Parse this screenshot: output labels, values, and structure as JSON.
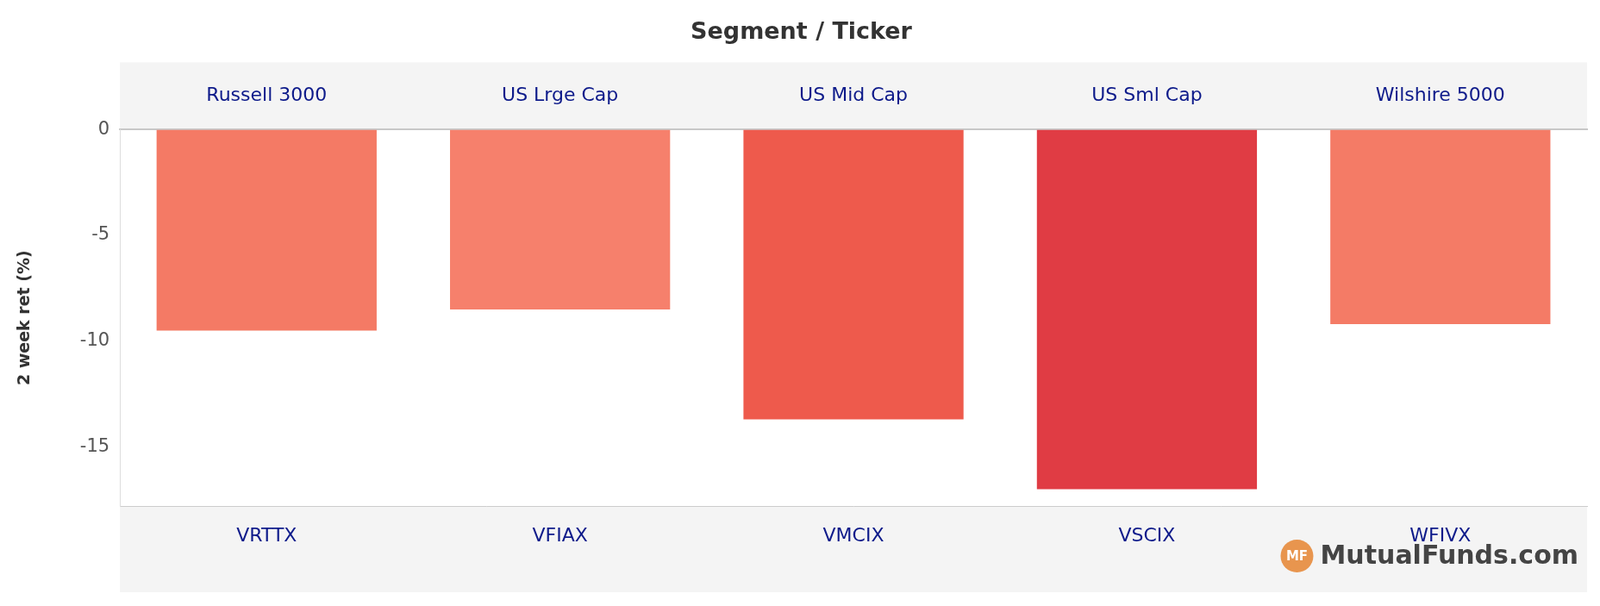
{
  "chart_data": {
    "type": "bar",
    "title": "Segment / Ticker",
    "y_label": "2 week ret (%)",
    "segments": [
      "Russell 3000",
      "US Lrge Cap",
      "US Mid Cap",
      "US Sml Cap",
      "Wilshire 5000"
    ],
    "categories": [
      "VRTTX",
      "VFIAX",
      "VMCIX",
      "VSCIX",
      "WFIVX"
    ],
    "values": [
      -9.5,
      -8.5,
      -13.7,
      -17.0,
      -9.2
    ],
    "colors": [
      "#f47a65",
      "#f6806c",
      "#ee5a4c",
      "#e03c44",
      "#f47b66"
    ],
    "ylim": [
      -17.8,
      0
    ],
    "yticks": [
      0,
      -5,
      -10,
      -15
    ],
    "grid": false,
    "annotations": [
      "MF",
      "MutualFunds.com"
    ]
  }
}
